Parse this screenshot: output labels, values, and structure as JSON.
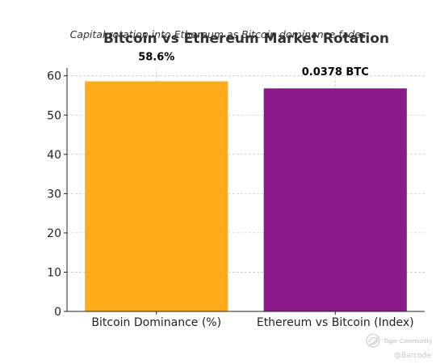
{
  "chart_data": {
    "type": "bar",
    "title": "Bitcoin vs Ethereum Market Rotation",
    "subtitle": "Capital rotation into Ethereum as Bitcoin dominance fades",
    "categories": [
      "Bitcoin Dominance (%)",
      "Ethereum vs Bitcoin (Index)"
    ],
    "values": [
      58.6,
      56.8
    ],
    "data_labels": [
      "58.6%",
      "0.0378 BTC"
    ],
    "colors": [
      "#FFAC1A",
      "#8A1A8A"
    ],
    "ylim": [
      0,
      62
    ],
    "yticks": [
      0,
      10,
      20,
      30,
      40,
      50,
      60
    ],
    "grid": true,
    "legend": "none"
  },
  "watermark": {
    "brand": "Tiger Community",
    "handle": "@Barcode",
    "icon": "tiger-swirl-icon"
  }
}
